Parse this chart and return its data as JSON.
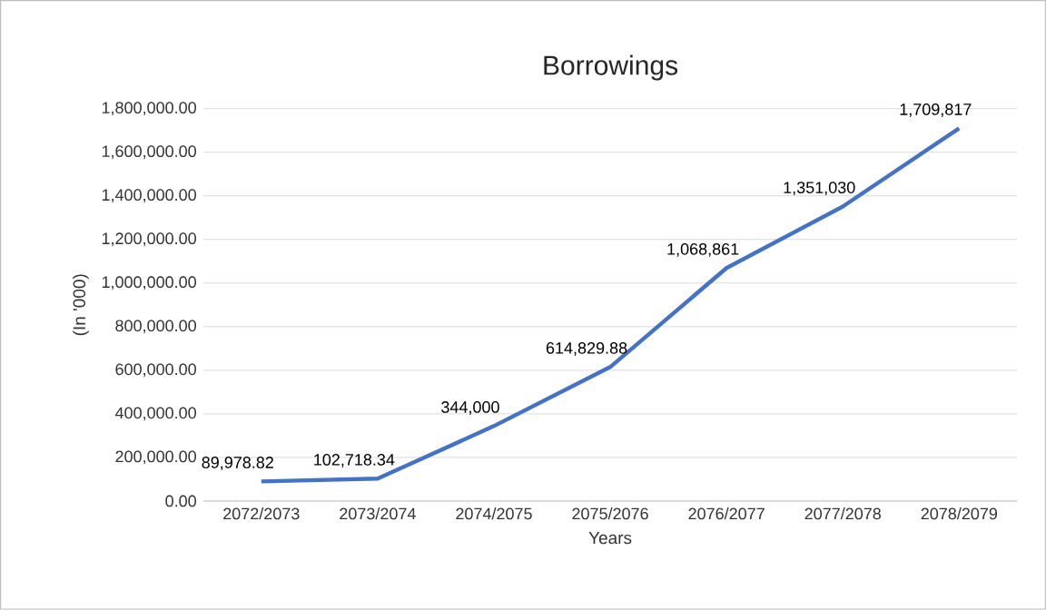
{
  "chart_data": {
    "type": "line",
    "title": "Borrowings",
    "xlabel": "Years",
    "ylabel": "(In '000)",
    "categories": [
      "2072/2073",
      "2073/2074",
      "2074/2075",
      "2075/2076",
      "2076/2077",
      "2077/2078",
      "2078/2079"
    ],
    "values": [
      89978.82,
      102718.34,
      344000,
      614829.88,
      1068861,
      1351030,
      1709817
    ],
    "value_labels": [
      "89,978.82",
      "102,718.34",
      "344,000",
      "614,829.88",
      "1,068,861",
      "1,351,030",
      "1,709,817"
    ],
    "color": "#4472c4",
    "ylim": [
      0,
      1800000
    ],
    "yticks": [
      {
        "value": 0,
        "label": "0.00"
      },
      {
        "value": 200000,
        "label": "200,000.00"
      },
      {
        "value": 400000,
        "label": "400,000.00"
      },
      {
        "value": 600000,
        "label": "600,000.00"
      },
      {
        "value": 800000,
        "label": "800,000.00"
      },
      {
        "value": 1000000,
        "label": "1,000,000.00"
      },
      {
        "value": 1200000,
        "label": "1,200,000.00"
      },
      {
        "value": 1400000,
        "label": "1,400,000.00"
      },
      {
        "value": 1600000,
        "label": "1,600,000.00"
      },
      {
        "value": 1800000,
        "label": "1,800,000.00"
      }
    ],
    "grid": "y",
    "marker": "none",
    "line_style": "solid"
  }
}
